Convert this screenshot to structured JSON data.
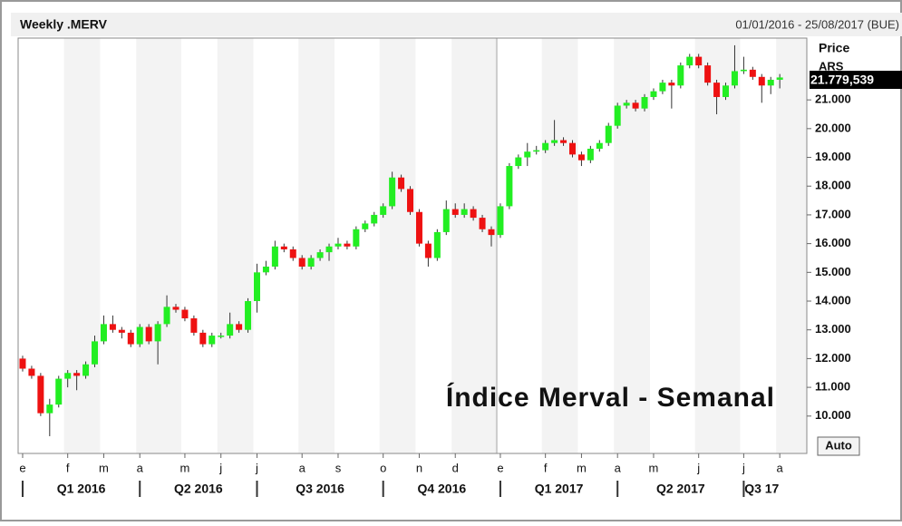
{
  "chart_data": {
    "type": "candlestick",
    "title": "Weekly .MERV",
    "date_range": "01/01/2016 - 25/08/2017 (BUE)",
    "y_axis_title": "Price",
    "y_axis_unit": "ARS",
    "last_price_label": "21.779,539",
    "button": "Auto",
    "annotation": "Índice Merval - Semanal",
    "up_color": "#22ee22",
    "down_color": "#ee1111",
    "wick_color": "#333333",
    "open": [
      12000,
      11650,
      11400,
      10100,
      10400,
      11300,
      11500,
      11400,
      11800,
      12600,
      13200,
      13000,
      12900,
      12500,
      13100,
      12600,
      13200,
      13800,
      13700,
      13400,
      12900,
      12500,
      12800,
      12800,
      13200,
      13000,
      14000,
      15000,
      15200,
      15900,
      15800,
      15500,
      15200,
      15500,
      15700,
      15900,
      16000,
      15900,
      16500,
      16700,
      17000,
      17300,
      18300,
      17900,
      17100,
      16000,
      15500,
      16400,
      17200,
      17000,
      17200,
      16900,
      16500,
      16300,
      17300,
      18700,
      19000,
      19200,
      19250,
      19500,
      19600,
      19500,
      19100,
      18900,
      19300,
      19500,
      20100,
      20800,
      20900,
      20700,
      21100,
      21300,
      21600,
      21500,
      22200,
      22500,
      22200,
      21600,
      21100,
      21500,
      22000,
      22050,
      21800,
      21500,
      21700
    ],
    "high": [
      12100,
      11750,
      11500,
      10600,
      11400,
      11600,
      11600,
      11900,
      12800,
      13500,
      13500,
      13100,
      13000,
      13200,
      13200,
      13300,
      14200,
      13900,
      13800,
      13500,
      13000,
      12900,
      12900,
      13600,
      13300,
      14100,
      15300,
      15400,
      16100,
      16000,
      15900,
      15600,
      15600,
      15800,
      16000,
      16200,
      16100,
      16600,
      16800,
      17100,
      17400,
      18500,
      18400,
      18000,
      17200,
      16100,
      16500,
      17500,
      17400,
      17400,
      17300,
      17000,
      16600,
      17400,
      18800,
      19100,
      19500,
      19400,
      19600,
      20300,
      19700,
      19600,
      19200,
      19400,
      19600,
      20200,
      20900,
      21000,
      21000,
      21200,
      21400,
      21700,
      21700,
      22300,
      22600,
      22600,
      22300,
      21700,
      21600,
      22900,
      22500,
      22150,
      21900,
      21800,
      21900
    ],
    "low": [
      11550,
      11300,
      10000,
      9300,
      10300,
      11000,
      10900,
      11300,
      11700,
      12500,
      12900,
      12700,
      12400,
      12400,
      12500,
      11800,
      13100,
      13600,
      13300,
      12800,
      12400,
      12400,
      12700,
      12700,
      12900,
      12900,
      13600,
      14900,
      15100,
      15700,
      15400,
      15100,
      15100,
      15400,
      15400,
      15800,
      15800,
      15800,
      16400,
      16600,
      16900,
      17200,
      17800,
      17000,
      15900,
      15200,
      15400,
      16300,
      16900,
      16900,
      16800,
      16400,
      15900,
      16200,
      17200,
      18600,
      18700,
      19100,
      19150,
      19400,
      19400,
      19000,
      18700,
      18800,
      19200,
      19400,
      20000,
      20700,
      20600,
      20600,
      21000,
      21200,
      20700,
      21400,
      22100,
      22100,
      21500,
      20500,
      21000,
      21400,
      21900,
      21700,
      20900,
      21200,
      21400
    ],
    "close": [
      11650,
      11400,
      10100,
      10400,
      11300,
      11500,
      11400,
      11800,
      12600,
      13200,
      13000,
      12900,
      12500,
      13100,
      12600,
      13200,
      13800,
      13700,
      13400,
      12900,
      12500,
      12800,
      12800,
      13200,
      13000,
      14000,
      15000,
      15200,
      15900,
      15800,
      15500,
      15200,
      15500,
      15700,
      15900,
      16000,
      15900,
      16500,
      16700,
      17000,
      17300,
      18300,
      17900,
      17100,
      16000,
      15500,
      16400,
      17200,
      17000,
      17200,
      16900,
      16500,
      16300,
      17300,
      18700,
      19000,
      19200,
      19250,
      19500,
      19600,
      19500,
      19100,
      18900,
      19300,
      19500,
      20100,
      20800,
      20900,
      20700,
      21100,
      21300,
      21600,
      21500,
      22200,
      22500,
      22200,
      21600,
      21100,
      21500,
      22000,
      22050,
      21800,
      21500,
      21700,
      21780
    ],
    "xlim": [
      -0.5,
      87
    ],
    "xticks": [
      {
        "value": 0,
        "label": "e"
      },
      {
        "value": 5,
        "label": "f"
      },
      {
        "value": 9,
        "label": "m"
      },
      {
        "value": 13,
        "label": "a"
      },
      {
        "value": 18,
        "label": "m"
      },
      {
        "value": 22,
        "label": "j"
      },
      {
        "value": 26,
        "label": "j"
      },
      {
        "value": 31,
        "label": "a"
      },
      {
        "value": 35,
        "label": "s"
      },
      {
        "value": 40,
        "label": "o"
      },
      {
        "value": 44,
        "label": "n"
      },
      {
        "value": 48,
        "label": "d"
      },
      {
        "value": 53,
        "label": "e"
      },
      {
        "value": 58,
        "label": "f"
      },
      {
        "value": 62,
        "label": "m"
      },
      {
        "value": 66,
        "label": "a"
      },
      {
        "value": 70,
        "label": "m"
      },
      {
        "value": 75,
        "label": "j"
      },
      {
        "value": 80,
        "label": "j"
      },
      {
        "value": 84,
        "label": "a"
      }
    ],
    "quarters": [
      {
        "label": "Q1 2016",
        "start": 0
      },
      {
        "label": "Q2 2016",
        "start": 13
      },
      {
        "label": "Q3 2016",
        "start": 26
      },
      {
        "label": "Q4 2016",
        "start": 40
      },
      {
        "label": "Q1 2017",
        "start": 53
      },
      {
        "label": "Q2 2017",
        "start": 66
      },
      {
        "label": "Q3 17",
        "start": 80
      }
    ],
    "ylim": [
      8700,
      23150
    ],
    "yticks": [
      {
        "value": 10000,
        "label": "10.000"
      },
      {
        "value": 11000,
        "label": "11.000"
      },
      {
        "value": 12000,
        "label": "12.000"
      },
      {
        "value": 13000,
        "label": "13.000"
      },
      {
        "value": 14000,
        "label": "14.000"
      },
      {
        "value": 15000,
        "label": "15.000"
      },
      {
        "value": 16000,
        "label": "16.000"
      },
      {
        "value": 17000,
        "label": "17.000"
      },
      {
        "value": 18000,
        "label": "18.000"
      },
      {
        "value": 19000,
        "label": "19.000"
      },
      {
        "value": 20000,
        "label": "20.000"
      },
      {
        "value": 21000,
        "label": "21.000"
      }
    ]
  }
}
